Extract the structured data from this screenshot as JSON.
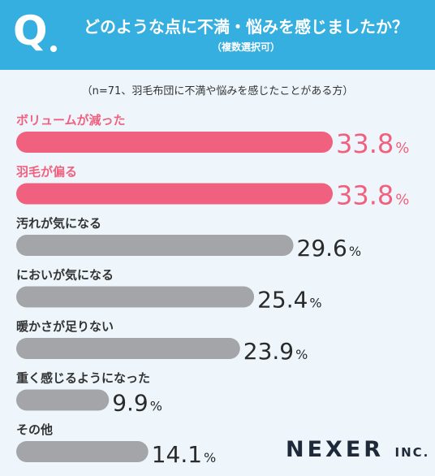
{
  "question": {
    "mark": "Q",
    "text": "どのような点に不満・悩みを感じましたか？",
    "subtext": "（複数選択可）"
  },
  "note": "（n=71、羽毛布団に不満や悩みを感じたことがある方）",
  "brand": {
    "name": "NEXER",
    "suffix": "INC."
  },
  "colors": {
    "header": "#35aee0",
    "highlight": "#f0607f",
    "normal": "#a3a5a8",
    "text": "#333333"
  },
  "chart_data": {
    "type": "bar",
    "orientation": "horizontal",
    "unit": "%",
    "categories": [
      "ボリュームが減った",
      "羽毛が偏る",
      "汚れが気になる",
      "においが気になる",
      "暖かさが足りない",
      "重く感じるようになった",
      "その他"
    ],
    "values": [
      33.8,
      33.8,
      29.6,
      25.4,
      23.9,
      9.9,
      14.1
    ],
    "value_labels": [
      "33.8",
      "33.8",
      "29.6",
      "25.4",
      "23.9",
      "9.9",
      "14.1"
    ],
    "highlighted": [
      true,
      true,
      false,
      false,
      false,
      false,
      false
    ],
    "xlim": [
      0,
      33.8
    ]
  }
}
